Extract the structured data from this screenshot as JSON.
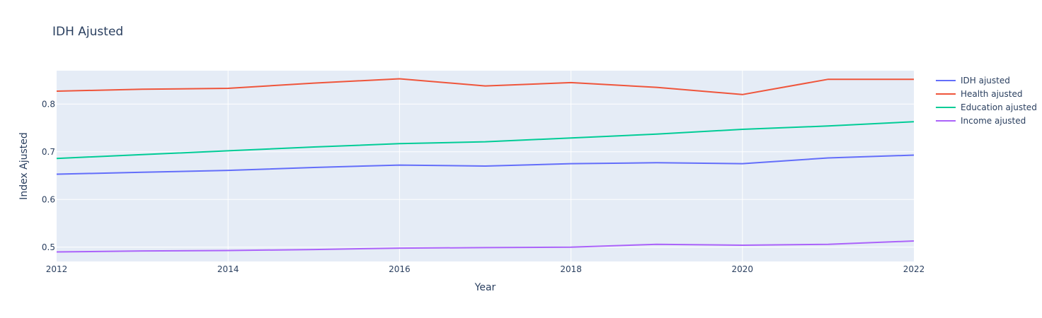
{
  "chart_data": {
    "type": "line",
    "title": "IDH Ajusted",
    "xlabel": "Year",
    "ylabel": "Index Ajusted",
    "x": [
      2012,
      2013,
      2014,
      2015,
      2016,
      2017,
      2018,
      2019,
      2020,
      2021,
      2022
    ],
    "xlim": [
      2012,
      2022
    ],
    "ylim": [
      0.47,
      0.87
    ],
    "x_ticks": [
      2012,
      2014,
      2016,
      2018,
      2020,
      2022
    ],
    "y_ticks": [
      0.5,
      0.6,
      0.7,
      0.8
    ],
    "y_tick_labels": [
      "0.5",
      "0.6",
      "0.7",
      "0.8"
    ],
    "grid": true,
    "legend_position": "top-right",
    "series": [
      {
        "name": "IDH ajusted",
        "color": "#636efa",
        "values": [
          0.653,
          0.657,
          0.661,
          0.667,
          0.672,
          0.67,
          0.675,
          0.677,
          0.675,
          0.687,
          0.693
        ]
      },
      {
        "name": "Health ajusted",
        "color": "#ef553b",
        "values": [
          0.827,
          0.831,
          0.833,
          0.844,
          0.853,
          0.838,
          0.845,
          0.835,
          0.82,
          0.852,
          0.852
        ]
      },
      {
        "name": "Education ajusted",
        "color": "#00cc96",
        "values": [
          0.686,
          0.694,
          0.702,
          0.71,
          0.717,
          0.721,
          0.729,
          0.737,
          0.747,
          0.754,
          0.763
        ]
      },
      {
        "name": "Income ajusted",
        "color": "#ab63fa",
        "values": [
          0.49,
          0.492,
          0.493,
          0.495,
          0.498,
          0.499,
          0.5,
          0.506,
          0.504,
          0.506,
          0.513
        ]
      }
    ]
  }
}
